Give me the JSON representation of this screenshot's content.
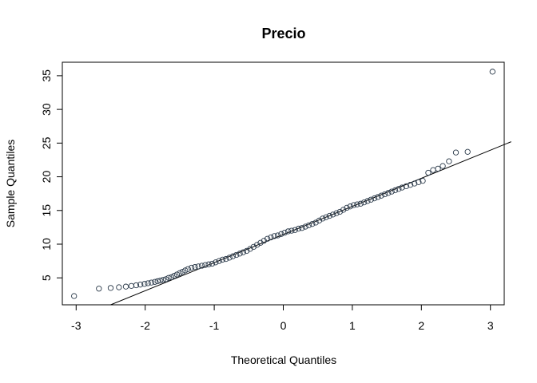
{
  "chart_data": {
    "type": "scatter",
    "title": "Precio",
    "xlabel": "Theoretical Quantiles",
    "ylabel": "Sample Quantiles",
    "xlim": [
      -3.2,
      3.2
    ],
    "ylim": [
      1.0,
      37.0
    ],
    "xticks": [
      -3,
      -2,
      -1,
      0,
      1,
      2,
      3
    ],
    "yticks": [
      5,
      10,
      15,
      20,
      25,
      30,
      35
    ],
    "grid": false,
    "legend": "none",
    "marker": "open-circle",
    "point_color": "#2b3a4a",
    "reference_line": {
      "x": [
        -2.5,
        3.3
      ],
      "y": [
        1.0,
        25.2
      ]
    },
    "points": [
      [
        -3.03,
        2.3
      ],
      [
        -2.67,
        3.4
      ],
      [
        -2.5,
        3.5
      ],
      [
        -2.38,
        3.6
      ],
      [
        -2.28,
        3.7
      ],
      [
        -2.2,
        3.8
      ],
      [
        -2.13,
        3.9
      ],
      [
        -2.07,
        4.0
      ],
      [
        -2.01,
        4.1
      ],
      [
        -1.96,
        4.2
      ],
      [
        -1.91,
        4.3
      ],
      [
        -1.86,
        4.4
      ],
      [
        -1.82,
        4.5
      ],
      [
        -1.78,
        4.6
      ],
      [
        -1.74,
        4.7
      ],
      [
        -1.7,
        4.8
      ],
      [
        -1.66,
        5.0
      ],
      [
        -1.62,
        5.1
      ],
      [
        -1.58,
        5.3
      ],
      [
        -1.54,
        5.5
      ],
      [
        -1.5,
        5.7
      ],
      [
        -1.46,
        5.9
      ],
      [
        -1.42,
        6.1
      ],
      [
        -1.38,
        6.3
      ],
      [
        -1.33,
        6.5
      ],
      [
        -1.28,
        6.6
      ],
      [
        -1.23,
        6.7
      ],
      [
        -1.18,
        6.8
      ],
      [
        -1.13,
        6.9
      ],
      [
        -1.08,
        7.0
      ],
      [
        -1.03,
        7.1
      ],
      [
        -0.98,
        7.3
      ],
      [
        -0.93,
        7.5
      ],
      [
        -0.88,
        7.7
      ],
      [
        -0.83,
        7.8
      ],
      [
        -0.78,
        8.0
      ],
      [
        -0.73,
        8.2
      ],
      [
        -0.68,
        8.4
      ],
      [
        -0.63,
        8.6
      ],
      [
        -0.58,
        8.8
      ],
      [
        -0.53,
        9.0
      ],
      [
        -0.48,
        9.3
      ],
      [
        -0.43,
        9.6
      ],
      [
        -0.38,
        9.9
      ],
      [
        -0.33,
        10.2
      ],
      [
        -0.28,
        10.5
      ],
      [
        -0.23,
        10.8
      ],
      [
        -0.18,
        11.0
      ],
      [
        -0.13,
        11.2
      ],
      [
        -0.08,
        11.3
      ],
      [
        -0.03,
        11.5
      ],
      [
        0.02,
        11.7
      ],
      [
        0.07,
        11.9
      ],
      [
        0.12,
        12.0
      ],
      [
        0.17,
        12.1
      ],
      [
        0.22,
        12.3
      ],
      [
        0.27,
        12.4
      ],
      [
        0.32,
        12.6
      ],
      [
        0.37,
        12.8
      ],
      [
        0.42,
        13.0
      ],
      [
        0.47,
        13.2
      ],
      [
        0.52,
        13.5
      ],
      [
        0.57,
        13.8
      ],
      [
        0.62,
        14.0
      ],
      [
        0.67,
        14.2
      ],
      [
        0.72,
        14.4
      ],
      [
        0.77,
        14.6
      ],
      [
        0.82,
        14.8
      ],
      [
        0.87,
        15.1
      ],
      [
        0.92,
        15.4
      ],
      [
        0.97,
        15.6
      ],
      [
        1.02,
        15.8
      ],
      [
        1.07,
        15.9
      ],
      [
        1.12,
        16.0
      ],
      [
        1.17,
        16.2
      ],
      [
        1.22,
        16.4
      ],
      [
        1.27,
        16.6
      ],
      [
        1.32,
        16.8
      ],
      [
        1.37,
        17.0
      ],
      [
        1.42,
        17.2
      ],
      [
        1.47,
        17.4
      ],
      [
        1.52,
        17.6
      ],
      [
        1.57,
        17.8
      ],
      [
        1.62,
        18.0
      ],
      [
        1.67,
        18.2
      ],
      [
        1.72,
        18.4
      ],
      [
        1.78,
        18.6
      ],
      [
        1.84,
        18.8
      ],
      [
        1.9,
        19.0
      ],
      [
        1.96,
        19.2
      ],
      [
        2.02,
        19.4
      ],
      [
        2.1,
        20.6
      ],
      [
        2.17,
        21.0
      ],
      [
        2.24,
        21.2
      ],
      [
        2.31,
        21.6
      ],
      [
        2.4,
        22.3
      ],
      [
        2.5,
        23.6
      ],
      [
        2.67,
        23.7
      ],
      [
        3.03,
        35.6
      ]
    ]
  }
}
